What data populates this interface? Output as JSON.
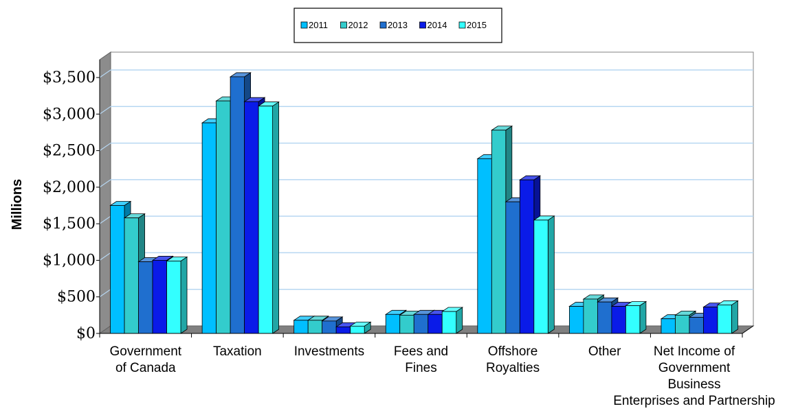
{
  "chart_data": {
    "type": "bar",
    "ylabel": "Millions",
    "ylim": [
      0,
      3500
    ],
    "yticks": [
      "$0",
      "$500",
      "$1,000",
      "$1,500",
      "$2,000",
      "$2,500",
      "$3,000",
      "$3,500"
    ],
    "ytick_values": [
      0,
      500,
      1000,
      1500,
      2000,
      2500,
      3000,
      3500
    ],
    "grid": true,
    "legend_position": "top-center",
    "categories": [
      [
        "Government",
        "of Canada"
      ],
      [
        "Taxation"
      ],
      [
        "Investments"
      ],
      [
        "Fees and",
        "Fines"
      ],
      [
        "Offshore",
        "Royalties"
      ],
      [
        "Other"
      ],
      [
        "Net Income of",
        "Government",
        "Business",
        "Enterprises and Partnership"
      ]
    ],
    "series": [
      {
        "name": "2011",
        "color": "#00bfff",
        "values": [
          1750,
          2880,
          180,
          260,
          2390,
          370,
          200
        ]
      },
      {
        "name": "2012",
        "color": "#33cccc",
        "values": [
          1580,
          3180,
          180,
          250,
          2780,
          470,
          250
        ]
      },
      {
        "name": "2013",
        "color": "#1f6fcf",
        "values": [
          980,
          3510,
          170,
          260,
          1800,
          430,
          220
        ]
      },
      {
        "name": "2014",
        "color": "#0a1be8",
        "values": [
          1000,
          3170,
          90,
          260,
          2100,
          370,
          360
        ]
      },
      {
        "name": "2015",
        "color": "#33ffff",
        "values": [
          990,
          3110,
          100,
          300,
          1550,
          380,
          390
        ]
      }
    ]
  }
}
